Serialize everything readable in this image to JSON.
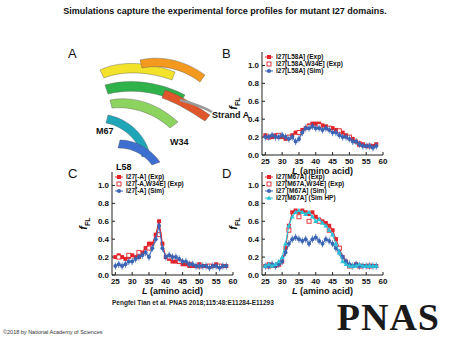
{
  "title": "Simulations capture the experimental force profiles for mutant I27 domains.",
  "panel_a": {
    "label": "A",
    "annotations": [
      "Strand A",
      "M67",
      "W34",
      "L58"
    ]
  },
  "chart_data": [
    {
      "panel_label": "B",
      "type": "line",
      "x": [
        25,
        26,
        27,
        28,
        29,
        30,
        31,
        32,
        33,
        34,
        35,
        36,
        37,
        38,
        39,
        40,
        41,
        42,
        43,
        44,
        45,
        46,
        47,
        48,
        49,
        50,
        51,
        52,
        53,
        54,
        55,
        56,
        57,
        58
      ],
      "xlim": [
        24,
        60
      ],
      "xticks": [
        25,
        30,
        35,
        40,
        45,
        50,
        55,
        60
      ],
      "ylim": [
        0,
        1.15
      ],
      "yticks": [
        {
          "value": 0,
          "label": "0.0"
        },
        {
          "value": 0.2,
          "label": "0.2"
        },
        {
          "value": 0.4,
          "label": "0.4"
        },
        {
          "value": 0.6,
          "label": "0.6"
        },
        {
          "value": 0.8,
          "label": "0.8"
        },
        {
          "value": 1,
          "label": "1.0"
        }
      ],
      "x_label": [
        "L",
        " (amino acid)"
      ],
      "y_label": "f",
      "y_label_subscript": "FL",
      "legend": "upper left",
      "series": [
        {
          "name": "I27[L58A] (Exp)",
          "color": "#e3232a",
          "marker": "square",
          "line_style": "solid",
          "values": [
            0.22,
            0.2,
            0.2,
            0.22,
            0.2,
            0.2,
            0.18,
            0.2,
            0.22,
            0.25,
            0.25,
            0.28,
            0.3,
            0.33,
            0.35,
            0.35,
            0.35,
            0.33,
            0.32,
            0.3,
            0.3,
            0.28,
            0.27,
            0.25,
            0.22,
            0.2,
            0.18,
            0.15,
            0.13,
            0.12,
            0.1,
            0.1,
            0.1,
            0.12
          ]
        },
        {
          "name": "I27[L58A,W34E] (Exp)",
          "color": "#e3232a",
          "marker": "open-square",
          "line_style": "none",
          "values": [
            null,
            0.2,
            null,
            null,
            0.22,
            null,
            null,
            0.2,
            null,
            null,
            0.25,
            null,
            null,
            0.32,
            null,
            null,
            0.33,
            null,
            null,
            0.3,
            null,
            null,
            0.27,
            null,
            null,
            0.2,
            null,
            null,
            0.12,
            null,
            null,
            0.1,
            null,
            null
          ]
        },
        {
          "name": "I27[L58A] (Sim)",
          "color": "#3a64b4",
          "marker": "circle",
          "line_style": "solid",
          "values": [
            0.2,
            0.2,
            0.22,
            0.2,
            0.2,
            0.22,
            0.2,
            0.18,
            0.2,
            0.15,
            0.18,
            0.25,
            0.3,
            0.3,
            0.32,
            0.3,
            0.3,
            0.28,
            0.3,
            0.28,
            0.25,
            0.25,
            0.22,
            0.2,
            0.2,
            0.18,
            0.15,
            0.15,
            0.12,
            0.1,
            0.1,
            0.1,
            0.08,
            0.1
          ],
          "errors": [
            0.04,
            0.04,
            0.04,
            0.04,
            0.04,
            0.04,
            0.04,
            0.04,
            0.04,
            0.04,
            0.04,
            0.04,
            0.04,
            0.04,
            0.04,
            0.04,
            0.04,
            0.04,
            0.04,
            0.04,
            0.04,
            0.04,
            0.04,
            0.04,
            0.04,
            0.04,
            0.04,
            0.04,
            0.04,
            0.04,
            0.04,
            0.04,
            0.04,
            0.04
          ]
        }
      ]
    },
    {
      "panel_label": "C",
      "type": "line",
      "x": [
        25,
        26,
        27,
        28,
        29,
        30,
        31,
        32,
        33,
        34,
        35,
        36,
        37,
        38,
        39,
        40,
        41,
        42,
        43,
        44,
        45,
        46,
        47,
        48,
        49,
        50,
        51,
        52,
        53,
        54,
        55,
        56,
        57,
        58
      ],
      "xlim": [
        24,
        60
      ],
      "xticks": [
        25,
        30,
        35,
        40,
        45,
        50,
        55,
        60
      ],
      "ylim": [
        0,
        1.15
      ],
      "yticks": [
        {
          "value": 0,
          "label": "0.0"
        },
        {
          "value": 0.2,
          "label": "0.2"
        },
        {
          "value": 0.4,
          "label": "0.4"
        },
        {
          "value": 0.6,
          "label": "0.6"
        },
        {
          "value": 0.8,
          "label": "0.8"
        },
        {
          "value": 1,
          "label": "1.0"
        }
      ],
      "x_label": [
        "L",
        " (amino acid)"
      ],
      "y_label": "f",
      "y_label_subscript": "FL",
      "legend": "upper left",
      "series": [
        {
          "name": "I27[-A] (Exp)",
          "color": "#e3232a",
          "marker": "square",
          "line_style": "solid",
          "values": [
            0.2,
            0.22,
            0.2,
            0.18,
            0.2,
            0.22,
            0.2,
            0.2,
            0.25,
            0.3,
            0.35,
            0.35,
            0.45,
            0.6,
            0.35,
            0.2,
            0.18,
            0.15,
            0.15,
            0.15,
            0.12,
            0.12,
            0.1,
            0.1,
            0.1,
            0.12,
            0.1,
            0.1,
            0.1,
            0.1,
            0.12,
            0.1,
            0.1,
            0.1
          ]
        },
        {
          "name": "I27[-A,W34E] (Exp)",
          "color": "#e3232a",
          "marker": "open-square",
          "line_style": "none",
          "values": [
            null,
            0.2,
            null,
            null,
            0.22,
            null,
            null,
            0.25,
            null,
            null,
            0.3,
            null,
            null,
            0.45,
            null,
            null,
            0.2,
            null,
            null,
            0.15,
            null,
            null,
            0.12,
            null,
            null,
            0.1,
            null,
            null,
            0.1,
            null,
            null,
            0.1,
            null,
            null
          ]
        },
        {
          "name": "I27[-A] (Sim)",
          "color": "#3a64b4",
          "marker": "circle",
          "line_style": "solid",
          "values": [
            0.1,
            0.12,
            0.1,
            0.12,
            0.15,
            0.15,
            0.18,
            0.2,
            0.22,
            0.25,
            0.2,
            0.3,
            0.4,
            0.55,
            0.3,
            0.2,
            0.22,
            0.2,
            0.2,
            0.18,
            0.15,
            0.15,
            0.12,
            0.12,
            0.1,
            0.1,
            0.1,
            0.1,
            0.08,
            0.1,
            0.1,
            0.08,
            0.1,
            0.1
          ],
          "errors": [
            0.04,
            0.04,
            0.04,
            0.04,
            0.04,
            0.04,
            0.04,
            0.04,
            0.04,
            0.04,
            0.04,
            0.04,
            0.04,
            0.04,
            0.04,
            0.04,
            0.04,
            0.04,
            0.04,
            0.04,
            0.04,
            0.04,
            0.04,
            0.04,
            0.04,
            0.04,
            0.04,
            0.04,
            0.04,
            0.04,
            0.04,
            0.04,
            0.04,
            0.04
          ]
        }
      ]
    },
    {
      "panel_label": "D",
      "type": "line",
      "x": [
        25,
        26,
        27,
        28,
        29,
        30,
        31,
        32,
        33,
        34,
        35,
        36,
        37,
        38,
        39,
        40,
        41,
        42,
        43,
        44,
        45,
        46,
        47,
        48,
        49,
        50,
        51,
        52,
        53,
        54,
        55,
        56,
        57,
        58
      ],
      "xlim": [
        24,
        60
      ],
      "xticks": [
        25,
        30,
        35,
        40,
        45,
        50,
        55,
        60
      ],
      "ylim": [
        0,
        1.15
      ],
      "yticks": [
        {
          "value": 0,
          "label": "0.0"
        },
        {
          "value": 0.2,
          "label": "0.2"
        },
        {
          "value": 0.4,
          "label": "0.4"
        },
        {
          "value": 0.6,
          "label": "0.6"
        },
        {
          "value": 0.8,
          "label": "0.8"
        },
        {
          "value": 1,
          "label": "1.0"
        }
      ],
      "x_label": [
        "L",
        " (amino acid)"
      ],
      "y_label": "f",
      "y_label_subscript": "FL",
      "legend": "upper left",
      "series": [
        {
          "name": "I27[M67A] (Exp)",
          "color": "#e3232a",
          "marker": "square",
          "line_style": "solid",
          "values": [
            0.1,
            0.12,
            0.1,
            0.1,
            0.12,
            0.15,
            0.3,
            0.55,
            0.7,
            0.72,
            0.7,
            0.72,
            0.7,
            0.68,
            0.7,
            0.65,
            0.62,
            0.6,
            0.58,
            0.55,
            0.5,
            0.4,
            0.3,
            0.2,
            0.15,
            0.1,
            0.1,
            0.12,
            0.1,
            0.1,
            0.1,
            0.1,
            0.1,
            0.1
          ]
        },
        {
          "name": "I27[M67A,W34E] (Exp)",
          "color": "#e3232a",
          "marker": "open-square",
          "line_style": "none",
          "values": [
            null,
            0.1,
            null,
            null,
            0.12,
            null,
            null,
            0.5,
            null,
            null,
            0.65,
            null,
            null,
            0.6,
            null,
            null,
            0.6,
            null,
            null,
            0.5,
            null,
            null,
            0.3,
            null,
            null,
            0.1,
            null,
            null,
            0.1,
            null,
            null,
            0.1,
            null,
            null
          ]
        },
        {
          "name": "I27 [M67A] (Sim)",
          "color": "#3a64b4",
          "marker": "circle",
          "line_style": "solid",
          "values": [
            0.1,
            0.1,
            0.12,
            0.1,
            0.12,
            0.15,
            0.25,
            0.35,
            0.4,
            0.42,
            0.4,
            0.38,
            0.4,
            0.35,
            0.4,
            0.42,
            0.38,
            0.35,
            0.4,
            0.38,
            0.35,
            0.3,
            0.25,
            0.2,
            0.15,
            0.12,
            0.1,
            0.12,
            0.1,
            0.1,
            0.1,
            0.1,
            0.1,
            0.1
          ],
          "errors": [
            0.04,
            0.04,
            0.04,
            0.04,
            0.04,
            0.04,
            0.04,
            0.04,
            0.04,
            0.04,
            0.04,
            0.04,
            0.04,
            0.04,
            0.04,
            0.04,
            0.04,
            0.04,
            0.04,
            0.04,
            0.04,
            0.04,
            0.04,
            0.04,
            0.04,
            0.04,
            0.04,
            0.04,
            0.04,
            0.04,
            0.04,
            0.04,
            0.04,
            0.04
          ]
        },
        {
          "name": "I27[M67A] (Sim HP)",
          "color": "#2bc1d8",
          "marker": "triangle",
          "line_style": "solid",
          "values": [
            0.1,
            0.12,
            0.1,
            0.12,
            0.15,
            0.2,
            0.35,
            0.55,
            0.65,
            0.7,
            0.72,
            0.7,
            0.68,
            0.7,
            0.65,
            0.6,
            0.62,
            0.58,
            0.55,
            0.5,
            0.45,
            0.35,
            0.25,
            0.15,
            0.12,
            0.1,
            0.1,
            0.1,
            0.12,
            0.1,
            0.1,
            0.1,
            0.1,
            0.1
          ]
        }
      ]
    }
  ],
  "citation": "Pengfei Tian et al. PNAS 2018;115:48:E11284-E11293",
  "logo": "PNAS",
  "copyright": "©2018 by National Academy of Sciences"
}
